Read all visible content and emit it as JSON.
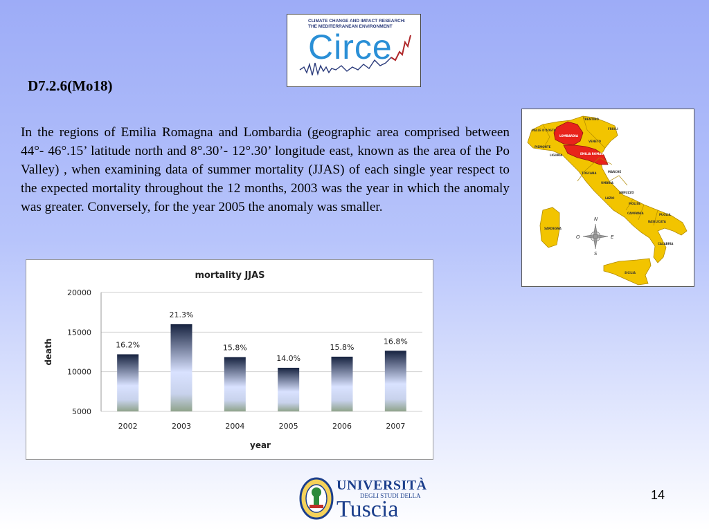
{
  "header": {
    "slide_title": "D7.2.6(Mo18)",
    "circe_top_line1": "CLIMATE CHANGE AND IMPACT RESEARCH:",
    "circe_top_line2": "THE MEDITERRANEAN ENVIRONMENT",
    "circe_word": "Circe"
  },
  "body": {
    "paragraph": "In the regions of Emilia Romagna and Lombardia (geographic area comprised between 44°- 46°.15’ latitude north and 8°.30’- 12°.30’ longitude east, known as the area of the Po Valley) , when examining data of summer mortality (JJAS) of each single year respect to the expected mortality throughout the 12 months, 2003 was the year in which the anomaly was greater. Conversely, for the year 2005 the anomaly was smaller."
  },
  "map": {
    "compass": {
      "n": "N",
      "s": "S",
      "e": "E",
      "o": "O"
    },
    "regions": {
      "valle_aosta": "VALLE D'AOSTA",
      "trentino": "TRENTINO",
      "friuli": "FRIULI",
      "lombardia": "LOMBARDIA",
      "veneto": "VENETO",
      "piemonte": "PIEMONTE",
      "emilia": "EMILIA ROMAGNA",
      "liguria": "LIGURIA",
      "toscana": "TOSCANA",
      "marche": "MARCHE",
      "umbria": "UMBRIA",
      "abruzzo": "ABRUZZO",
      "lazio": "LAZIO",
      "molise": "MOLISE",
      "campania": "CAMPANIA",
      "puglia": "PUGLIA",
      "basilicata": "BASILICATA",
      "sardegna": "SARDEGNA",
      "calabria": "CALABRIA",
      "sicilia": "SICILIA"
    },
    "colors": {
      "highlight": "#e8231b",
      "other": "#f2c400",
      "border": "#b08a00"
    }
  },
  "chart_data": {
    "type": "bar",
    "title": "mortality JJAS",
    "xlabel": "year",
    "ylabel": "death",
    "categories": [
      "2002",
      "2003",
      "2004",
      "2005",
      "2006",
      "2007"
    ],
    "values": [
      12200,
      16000,
      11850,
      10500,
      11900,
      12650
    ],
    "data_labels": [
      "16.2%",
      "21.3%",
      "15.8%",
      "14.0%",
      "15.8%",
      "16.8%"
    ],
    "ylim": [
      5000,
      20000
    ],
    "yticks": [
      5000,
      10000,
      15000,
      20000
    ],
    "grid": true,
    "legend": "none",
    "colors": {
      "bar_top": "#16223f",
      "bar_mid": "#d9e2ff",
      "bar_bottom": "#8fa38b",
      "grid": "#cfcfcf"
    }
  },
  "footer": {
    "page_number": "14",
    "uni_line1": "UNIVERSITÀ",
    "uni_line2": "DEGLI STUDI DELLA",
    "uni_line3": "Tuscia"
  }
}
